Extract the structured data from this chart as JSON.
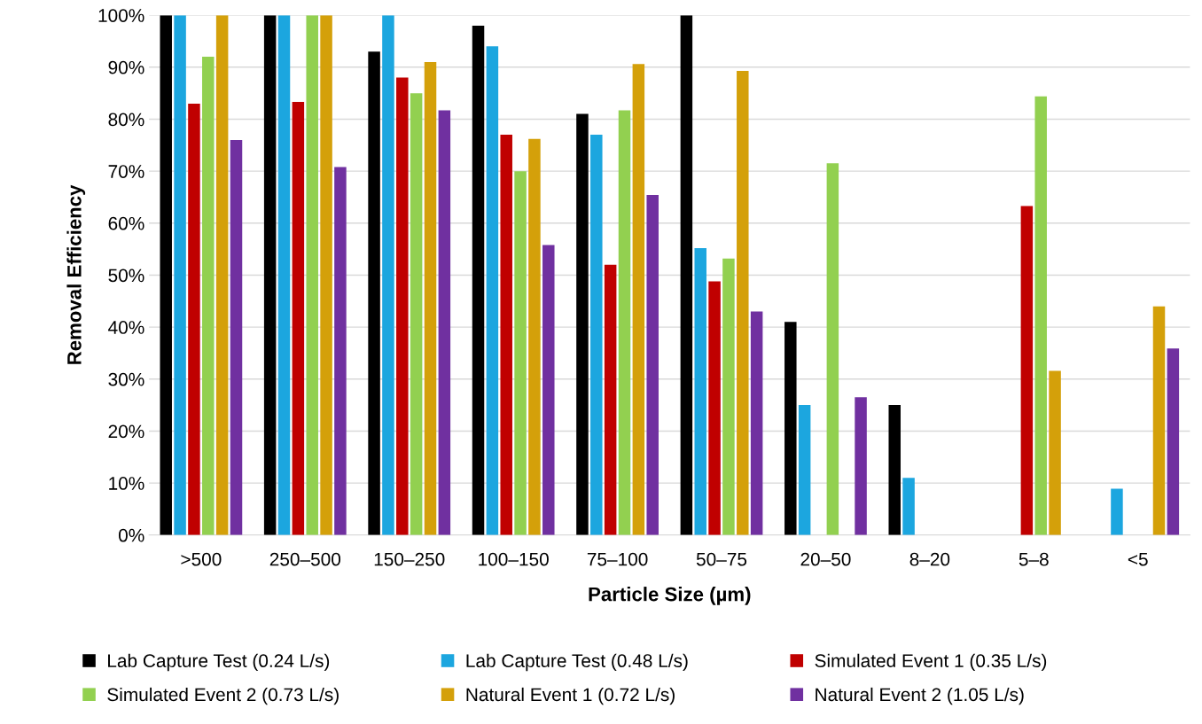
{
  "chart_data": {
    "type": "bar",
    "xlabel": "Particle Size (µm)",
    "ylabel": "Removal Efficiency",
    "categories": [
      ">500",
      "250–500",
      "150–250",
      "100–150",
      "75–100",
      "50–75",
      "20–50",
      "8–20",
      "5–8",
      "<5"
    ],
    "series": [
      {
        "name": "Lab Capture Test (0.24 L/s)",
        "color": "#000000",
        "values": [
          100,
          100,
          93,
          98,
          81,
          100,
          41,
          25,
          null,
          null
        ]
      },
      {
        "name": "Lab Capture Test (0.48 L/s)",
        "color": "#1ca6df",
        "values": [
          100,
          100,
          100,
          94,
          77,
          55.2,
          25,
          11,
          null,
          8.9
        ]
      },
      {
        "name": "Simulated Event 1 (0.35 L/s)",
        "color": "#c00000",
        "values": [
          83,
          83.3,
          88,
          77,
          52,
          48.8,
          null,
          null,
          63.3,
          null
        ]
      },
      {
        "name": "Simulated Event 2 (0.73 L/s)",
        "color": "#92d050",
        "values": [
          92,
          100,
          85,
          70,
          81.7,
          53.2,
          71.5,
          null,
          84.4,
          null
        ]
      },
      {
        "name": "Natural Event 1 (0.72 L/s)",
        "color": "#d4a00a",
        "values": [
          100,
          100,
          91,
          76.2,
          90.6,
          89.3,
          null,
          null,
          31.6,
          44
        ]
      },
      {
        "name": "Natural Event 2 (1.05 L/s)",
        "color": "#7030a0",
        "values": [
          76,
          70.8,
          81.7,
          55.8,
          65.4,
          43,
          26.5,
          null,
          null,
          35.9
        ]
      }
    ],
    "ylim": [
      0,
      100
    ],
    "yticks": [
      {
        "value": 0,
        "label": "0%"
      },
      {
        "value": 10,
        "label": "10%"
      },
      {
        "value": 20,
        "label": "20%"
      },
      {
        "value": 30,
        "label": "30%"
      },
      {
        "value": 40,
        "label": "40%"
      },
      {
        "value": 50,
        "label": "50%"
      },
      {
        "value": 60,
        "label": "60%"
      },
      {
        "value": 70,
        "label": "70%"
      },
      {
        "value": 80,
        "label": "80%"
      },
      {
        "value": 90,
        "label": "90%"
      },
      {
        "value": 100,
        "label": "100%"
      }
    ],
    "grid": "y",
    "legend": "bottom"
  }
}
